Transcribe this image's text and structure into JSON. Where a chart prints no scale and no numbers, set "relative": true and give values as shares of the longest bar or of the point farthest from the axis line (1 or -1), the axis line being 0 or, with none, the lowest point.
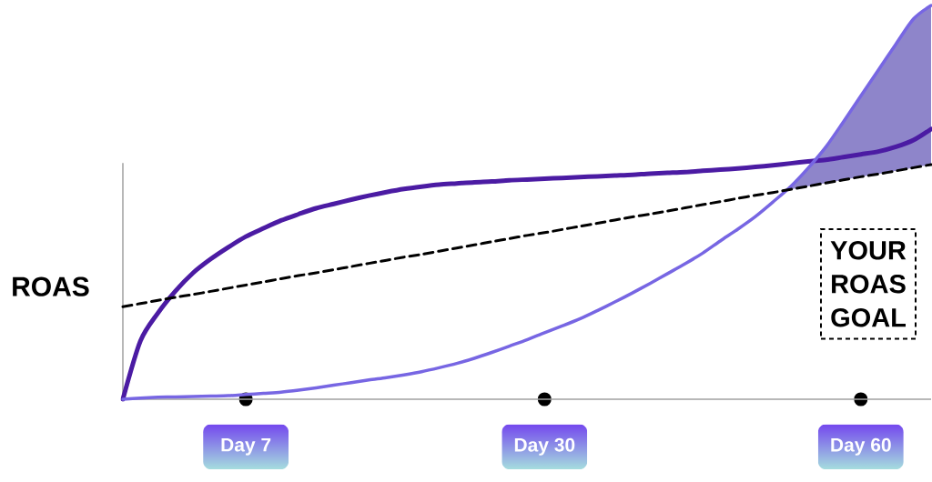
{
  "chart_data": {
    "type": "line",
    "relative": true,
    "ylabel": "ROAS",
    "categories": [
      null,
      null,
      null,
      null,
      null,
      null,
      null,
      "Day 7",
      null,
      null,
      null,
      null,
      null,
      null,
      null,
      null,
      null,
      null,
      null,
      null,
      null,
      null,
      null,
      null,
      "Day 30",
      null,
      null,
      null,
      null,
      null,
      null,
      null,
      null,
      null,
      null,
      null,
      null,
      null,
      null,
      null,
      null,
      null,
      "Day 60",
      null,
      null,
      null,
      null
    ],
    "series": [
      {
        "color": "#4b1ba3",
        "values": [
          0,
          0.148,
          0.219,
          0.275,
          0.321,
          0.356,
          0.386,
          0.413,
          0.434,
          0.454,
          0.47,
          0.485,
          0.496,
          0.507,
          0.517,
          0.526,
          0.534,
          0.54,
          0.545,
          0.548,
          0.551,
          0.553,
          0.556,
          0.558,
          0.56,
          0.562,
          0.564,
          0.566,
          0.568,
          0.57,
          0.573,
          0.575,
          0.577,
          0.58,
          0.583,
          0.586,
          0.59,
          0.594,
          0.599,
          0.604,
          0.608,
          0.615,
          0.622,
          0.629,
          0.641,
          0.658,
          0.686
        ]
      },
      {
        "color": "#7766e3",
        "values": [
          0,
          0.003,
          0.005,
          0.006,
          0.007,
          0.008,
          0.009,
          0.012,
          0.015,
          0.018,
          0.023,
          0.029,
          0.036,
          0.042,
          0.049,
          0.055,
          0.062,
          0.07,
          0.08,
          0.091,
          0.104,
          0.119,
          0.135,
          0.151,
          0.169,
          0.186,
          0.204,
          0.225,
          0.247,
          0.27,
          0.294,
          0.319,
          0.344,
          0.371,
          0.402,
          0.432,
          0.464,
          0.501,
          0.54,
          0.587,
          0.64,
          0.704,
          0.77,
          0.836,
          0.902,
          0.966,
          1
        ],
        "lower": [
          null,
          null,
          null,
          null,
          null,
          null,
          null,
          null,
          null,
          null,
          null,
          null,
          null,
          null,
          null,
          null,
          null,
          null,
          null,
          null,
          null,
          null,
          null,
          null,
          null,
          null,
          null,
          null,
          null,
          null,
          null,
          null,
          null,
          null,
          null,
          null,
          null,
          null,
          0.533,
          0.541,
          0.549,
          0.557,
          0.565,
          0.572,
          0.58,
          0.588,
          0.596
        ],
        "upper": [
          null,
          null,
          null,
          null,
          null,
          null,
          null,
          null,
          null,
          null,
          null,
          null,
          null,
          null,
          null,
          null,
          null,
          null,
          null,
          null,
          null,
          null,
          null,
          null,
          null,
          null,
          null,
          null,
          null,
          null,
          null,
          null,
          null,
          null,
          null,
          null,
          null,
          null,
          0.54,
          0.587,
          0.64,
          0.704,
          0.77,
          0.836,
          0.902,
          0.966,
          1
        ]
      },
      {
        "name": "YOUR ROAS GOAL",
        "color": "#000000",
        "line_style": "dashed",
        "values": [
          0.235,
          0.243,
          0.251,
          0.259,
          0.266,
          0.274,
          0.282,
          0.29,
          0.298,
          0.306,
          0.314,
          0.321,
          0.329,
          0.337,
          0.345,
          0.353,
          0.361,
          0.368,
          0.376,
          0.384,
          0.392,
          0.4,
          0.408,
          0.416,
          0.423,
          0.431,
          0.439,
          0.447,
          0.455,
          0.463,
          0.47,
          0.478,
          0.486,
          0.494,
          0.502,
          0.51,
          0.518,
          0.525,
          0.533,
          0.541,
          0.549,
          0.557,
          0.565,
          0.572,
          0.58,
          0.588,
          0.596
        ]
      }
    ]
  }
}
